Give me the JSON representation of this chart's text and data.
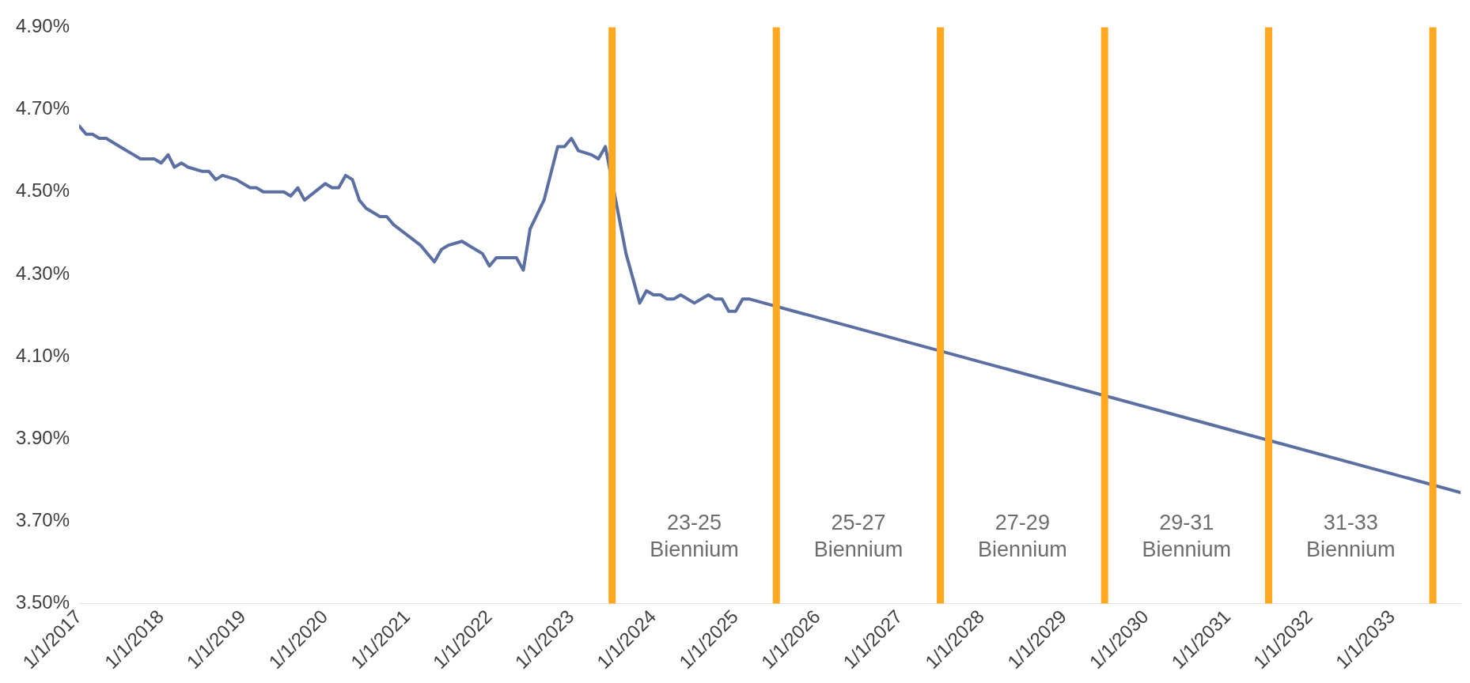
{
  "chart_data": {
    "type": "line",
    "x": [
      "2017-01",
      "2017-02",
      "2017-03",
      "2017-04",
      "2017-05",
      "2017-06",
      "2017-07",
      "2017-09",
      "2017-10",
      "2017-12",
      "2018-01",
      "2018-02",
      "2018-03",
      "2018-04",
      "2018-05",
      "2018-07",
      "2018-08",
      "2018-09",
      "2018-10",
      "2018-12",
      "2019-02",
      "2019-03",
      "2019-04",
      "2019-07",
      "2019-08",
      "2019-09",
      "2019-10",
      "2020-01",
      "2020-02",
      "2020-03",
      "2020-04",
      "2020-05",
      "2020-06",
      "2020-07",
      "2020-09",
      "2020-10",
      "2020-11",
      "2021-03",
      "2021-05",
      "2021-06",
      "2021-07",
      "2021-09",
      "2021-10",
      "2021-11",
      "2021-12",
      "2022-01",
      "2022-02",
      "2022-04",
      "2022-05",
      "2022-06",
      "2022-07",
      "2022-09",
      "2022-11",
      "2022-12",
      "2023-01",
      "2023-02",
      "2023-04",
      "2023-05",
      "2023-06",
      "2023-07",
      "2023-09",
      "2023-11",
      "2023-12",
      "2024-01",
      "2024-02",
      "2024-03",
      "2024-04",
      "2024-05",
      "2024-06",
      "2024-07",
      "2024-08",
      "2024-09",
      "2024-10",
      "2024-11",
      "2024-12",
      "2025-01",
      "2025-02",
      "2025-03",
      "2033-11"
    ],
    "series": [
      {
        "color": "#5b6fa3",
        "values": [
          4.66,
          4.64,
          4.64,
          4.63,
          4.63,
          4.62,
          4.61,
          4.59,
          4.58,
          4.58,
          4.57,
          4.59,
          4.56,
          4.57,
          4.56,
          4.55,
          4.55,
          4.53,
          4.54,
          4.53,
          4.51,
          4.51,
          4.5,
          4.5,
          4.49,
          4.51,
          4.48,
          4.52,
          4.51,
          4.51,
          4.54,
          4.53,
          4.48,
          4.46,
          4.44,
          4.44,
          4.42,
          4.37,
          4.33,
          4.36,
          4.37,
          4.38,
          4.37,
          4.36,
          4.35,
          4.32,
          4.34,
          4.34,
          4.34,
          4.31,
          4.41,
          4.48,
          4.61,
          4.61,
          4.63,
          4.6,
          4.59,
          4.58,
          4.61,
          null,
          4.35,
          4.23,
          4.26,
          4.25,
          4.25,
          4.24,
          4.24,
          4.25,
          4.24,
          4.23,
          4.24,
          4.25,
          4.24,
          4.24,
          4.21,
          4.21,
          4.24,
          4.24,
          3.77
        ]
      }
    ],
    "xticks": [
      {
        "value": "2017-01-01",
        "label": "1/1/2017"
      },
      {
        "value": "2018-01-01",
        "label": "1/1/2018"
      },
      {
        "value": "2019-01-01",
        "label": "1/1/2019"
      },
      {
        "value": "2020-01-01",
        "label": "1/1/2020"
      },
      {
        "value": "2021-01-01",
        "label": "1/1/2021"
      },
      {
        "value": "2022-01-01",
        "label": "1/1/2022"
      },
      {
        "value": "2023-01-01",
        "label": "1/1/2023"
      },
      {
        "value": "2024-01-01",
        "label": "1/1/2024"
      },
      {
        "value": "2025-01-01",
        "label": "1/1/2025"
      },
      {
        "value": "2026-01-01",
        "label": "1/1/2026"
      },
      {
        "value": "2027-01-01",
        "label": "1/1/2027"
      },
      {
        "value": "2028-01-01",
        "label": "1/1/2028"
      },
      {
        "value": "2029-01-01",
        "label": "1/1/2029"
      },
      {
        "value": "2030-01-01",
        "label": "1/1/2030"
      },
      {
        "value": "2031-01-01",
        "label": "1/1/2031"
      },
      {
        "value": "2032-01-01",
        "label": "1/1/2032"
      },
      {
        "value": "2033-01-01",
        "label": "1/1/2033"
      }
    ],
    "xlim": [
      "2017-01",
      "2033-11"
    ],
    "ylim": [
      3.5,
      4.9
    ],
    "yticks": [
      {
        "value": 3.5,
        "label": "3.50%"
      },
      {
        "value": 3.7,
        "label": "3.70%"
      },
      {
        "value": 3.9,
        "label": "3.90%"
      },
      {
        "value": 4.1,
        "label": "4.10%"
      },
      {
        "value": 4.3,
        "label": "4.30%"
      },
      {
        "value": 4.5,
        "label": "4.50%"
      },
      {
        "value": 4.7,
        "label": "4.70%"
      },
      {
        "value": 4.9,
        "label": "4.90%"
      }
    ],
    "ref_lines": [
      {
        "axis": "x",
        "value": "2023-07",
        "color": "#ffa820"
      },
      {
        "axis": "x",
        "value": "2025-07",
        "color": "#ffa820"
      },
      {
        "axis": "x",
        "value": "2027-07",
        "color": "#ffa820"
      },
      {
        "axis": "x",
        "value": "2029-07",
        "color": "#ffa820"
      },
      {
        "axis": "x",
        "value": "2031-07",
        "color": "#ffa820"
      },
      {
        "axis": "x",
        "value": "2033-07",
        "color": "#ffa820"
      }
    ],
    "annotations": [
      "23-25 Biennium",
      "25-27 Biennium",
      "27-29 Biennium",
      "29-31 Biennium",
      "31-33 Biennium"
    ],
    "grid": false,
    "legend": false,
    "marker": "none",
    "line_style": "solid"
  }
}
